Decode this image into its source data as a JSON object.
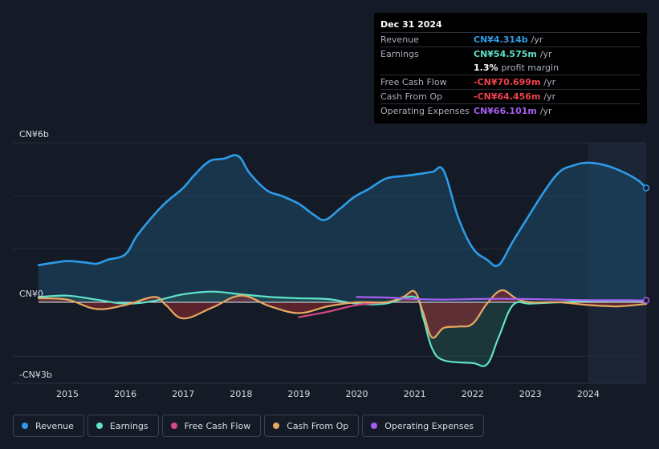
{
  "tooltip": {
    "date": "Dec 31 2024",
    "rows": [
      {
        "label": "Revenue",
        "value": "CN¥4.314b",
        "unit": "/yr",
        "color": "#2d9ce8"
      },
      {
        "label": "Earnings",
        "value": "CN¥54.575m",
        "unit": "/yr",
        "color": "#5fe3c9"
      },
      {
        "label": "",
        "value": "1.3%",
        "unit": "profit margin",
        "color": "#ffffff"
      },
      {
        "label": "Free Cash Flow",
        "value": "-CN¥70.699m",
        "unit": "/yr",
        "color": "#f0424d"
      },
      {
        "label": "Cash From Op",
        "value": "-CN¥64.456m",
        "unit": "/yr",
        "color": "#f0424d"
      },
      {
        "label": "Operating Expenses",
        "value": "CN¥66.101m",
        "unit": "/yr",
        "color": "#a45ff0"
      }
    ]
  },
  "legend": [
    {
      "label": "Revenue",
      "color": "#2d9ce8"
    },
    {
      "label": "Earnings",
      "color": "#5fe3c9"
    },
    {
      "label": "Free Cash Flow",
      "color": "#d44a87"
    },
    {
      "label": "Cash From Op",
      "color": "#e8a860"
    },
    {
      "label": "Operating Expenses",
      "color": "#a45ff0"
    }
  ],
  "chart_data": {
    "type": "line",
    "title": "",
    "xlabel": "",
    "ylabel": "",
    "ylim": [
      -3,
      6
    ],
    "y_tick_labels": [
      "CN¥6b",
      "CN¥0",
      "-CN¥3b"
    ],
    "y_tick_values": [
      6,
      0,
      -3
    ],
    "x_tick_labels": [
      "2015",
      "2016",
      "2017",
      "2018",
      "2019",
      "2020",
      "2021",
      "2022",
      "2023",
      "2024"
    ],
    "x_tick_values": [
      2015,
      2016,
      2017,
      2018,
      2019,
      2020,
      2021,
      2022,
      2023,
      2024
    ],
    "xlim": [
      2014.5,
      2025.0
    ],
    "highlight_start": 2024.0,
    "series": [
      {
        "name": "Revenue",
        "color": "#2d9ce8",
        "x": [
          2014.5,
          2014.8,
          2015.0,
          2015.3,
          2015.5,
          2015.7,
          2016.0,
          2016.2,
          2016.5,
          2016.7,
          2017.0,
          2017.2,
          2017.45,
          2017.7,
          2017.95,
          2018.15,
          2018.45,
          2018.7,
          2019.0,
          2019.25,
          2019.45,
          2019.7,
          2019.95,
          2020.2,
          2020.5,
          2020.8,
          2021.0,
          2021.3,
          2021.5,
          2021.75,
          2022.0,
          2022.25,
          2022.45,
          2022.7,
          2023.0,
          2023.25,
          2023.5,
          2023.75,
          2024.0,
          2024.3,
          2024.6,
          2024.85,
          2025.0
        ],
        "y": [
          1.4,
          1.5,
          1.55,
          1.5,
          1.45,
          1.6,
          1.8,
          2.5,
          3.3,
          3.75,
          4.3,
          4.8,
          5.3,
          5.4,
          5.5,
          4.85,
          4.2,
          4.0,
          3.7,
          3.3,
          3.1,
          3.5,
          3.95,
          4.25,
          4.65,
          4.75,
          4.8,
          4.9,
          4.95,
          3.2,
          2.05,
          1.6,
          1.4,
          2.3,
          3.35,
          4.2,
          4.9,
          5.15,
          5.25,
          5.15,
          4.9,
          4.6,
          4.3
        ]
      },
      {
        "name": "Earnings",
        "color": "#5fe3c9",
        "x": [
          2014.5,
          2015.0,
          2015.5,
          2016.0,
          2016.5,
          2017.0,
          2017.5,
          2018.0,
          2018.5,
          2019.0,
          2019.5,
          2020.0,
          2020.5,
          2021.0,
          2021.15,
          2021.3,
          2021.5,
          2022.0,
          2022.25,
          2022.45,
          2022.7,
          2023.0,
          2023.5,
          2024.0,
          2024.5,
          2025.0
        ],
        "y": [
          0.2,
          0.25,
          0.1,
          -0.05,
          0.05,
          0.3,
          0.4,
          0.3,
          0.2,
          0.15,
          0.12,
          -0.05,
          -0.05,
          0.2,
          -0.6,
          -1.7,
          -2.15,
          -2.25,
          -2.3,
          -1.3,
          -0.1,
          -0.05,
          0.0,
          0.05,
          0.06,
          0.05
        ]
      },
      {
        "name": "Free Cash Flow",
        "color": "#d44a87",
        "x": [
          2019.0,
          2019.5,
          2020.0,
          2020.5
        ],
        "y": [
          -0.55,
          -0.35,
          -0.1,
          0.0
        ]
      },
      {
        "name": "Cash From Op",
        "color": "#e8a860",
        "x": [
          2014.5,
          2015.0,
          2015.5,
          2016.0,
          2016.5,
          2016.7,
          2017.0,
          2017.5,
          2018.0,
          2018.5,
          2019.0,
          2019.5,
          2020.0,
          2020.5,
          2020.8,
          2021.0,
          2021.15,
          2021.3,
          2021.5,
          2021.75,
          2022.0,
          2022.25,
          2022.5,
          2022.75,
          2023.0,
          2023.5,
          2024.0,
          2024.5,
          2025.0
        ],
        "y": [
          0.15,
          0.1,
          -0.25,
          -0.1,
          0.2,
          -0.1,
          -0.6,
          -0.2,
          0.25,
          -0.15,
          -0.4,
          -0.15,
          0.0,
          0.0,
          0.2,
          0.4,
          -0.4,
          -1.3,
          -0.95,
          -0.9,
          -0.8,
          -0.05,
          0.45,
          0.15,
          0.0,
          0.0,
          -0.1,
          -0.15,
          -0.06
        ]
      },
      {
        "name": "Operating Expenses",
        "color": "#a45ff0",
        "x": [
          2020.0,
          2020.5,
          2021.0,
          2021.5,
          2022.0,
          2022.5,
          2023.0,
          2023.5,
          2024.0,
          2024.5,
          2025.0
        ],
        "y": [
          0.2,
          0.18,
          0.12,
          0.1,
          0.12,
          0.13,
          0.12,
          0.1,
          0.08,
          0.08,
          0.07
        ]
      }
    ]
  }
}
